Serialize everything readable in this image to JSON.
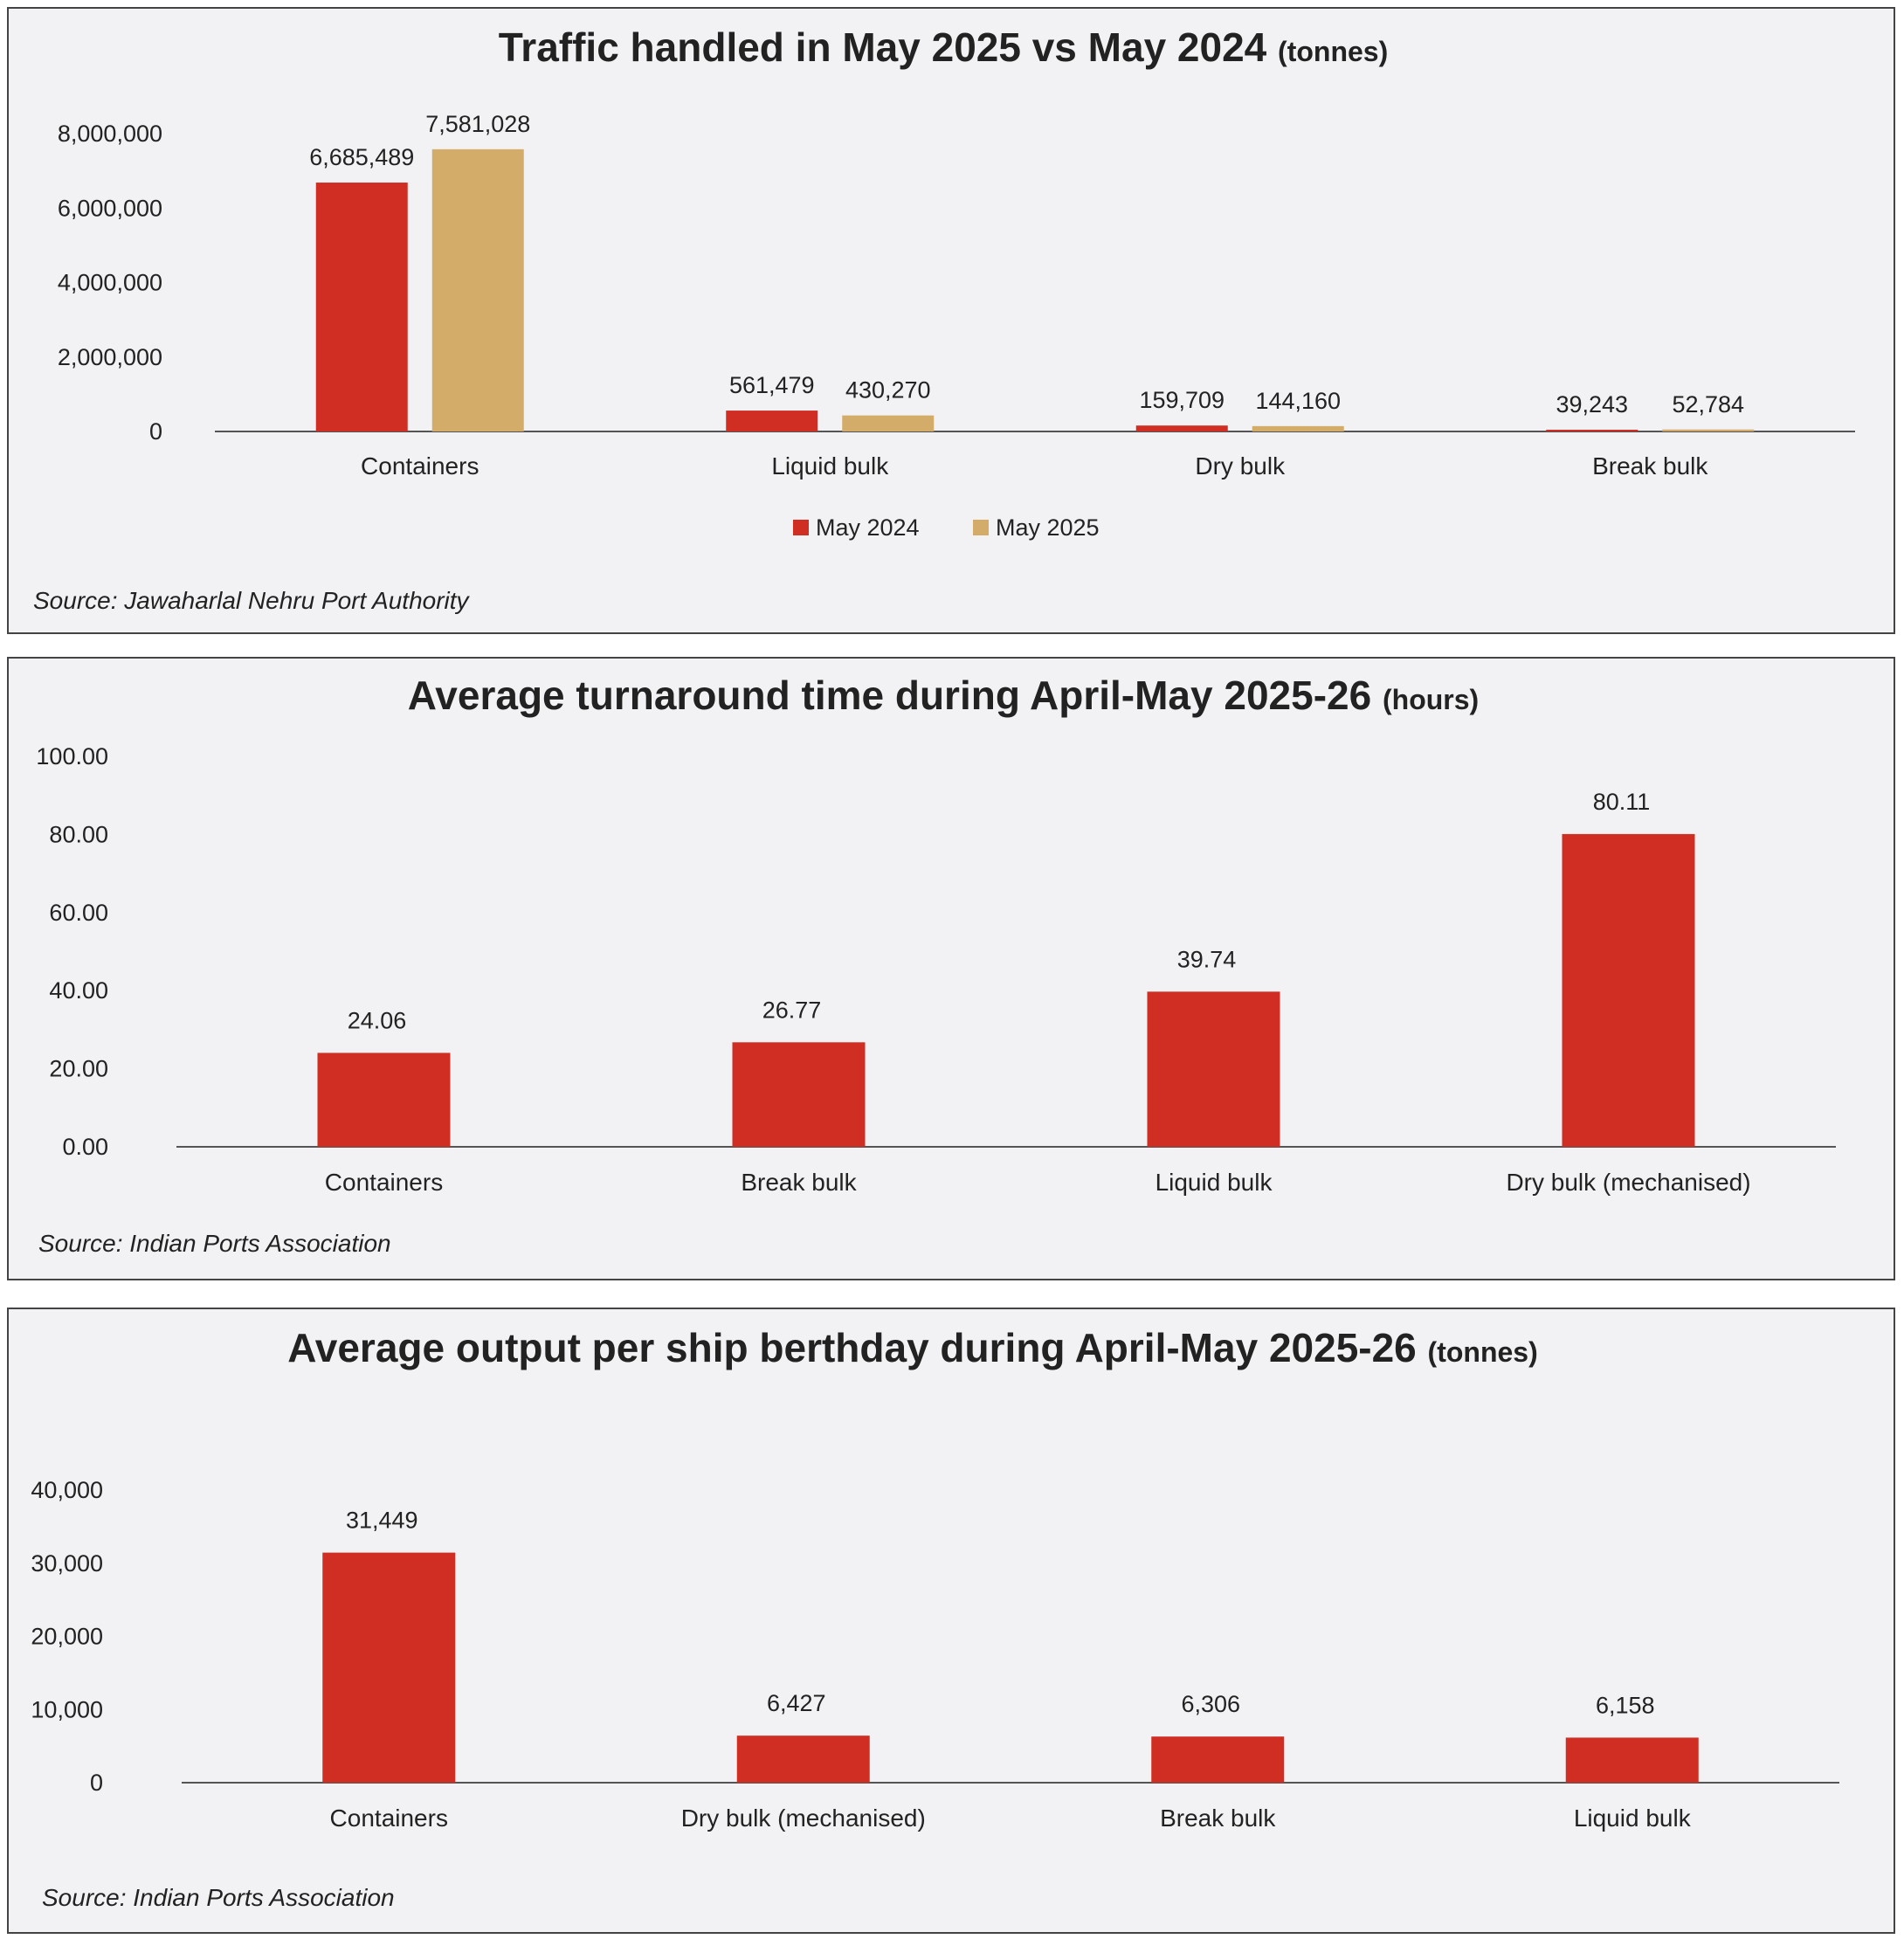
{
  "colors": {
    "may2024": "#d12e23",
    "may2025": "#d4ac69",
    "axis": "#555555",
    "text": "#222222"
  },
  "chart_data": [
    {
      "type": "bar",
      "title": "Traffic handled in May 2025 vs May 2024",
      "title_unit": "(tonnes)",
      "categories": [
        "Containers",
        "Liquid bulk",
        "Dry bulk",
        "Break bulk"
      ],
      "series": [
        {
          "name": "May 2024",
          "values": [
            6685489,
            561479,
            159709,
            39243
          ],
          "labels": [
            "6,685,489",
            "561,479",
            "159,709",
            "39,243"
          ]
        },
        {
          "name": "May 2025",
          "values": [
            7581028,
            430270,
            144160,
            52784
          ],
          "labels": [
            "7,581,028",
            "430,270",
            "144,160",
            "52,784"
          ]
        }
      ],
      "yticks": [
        "0",
        "2,000,000",
        "4,000,000",
        "6,000,000",
        "8,000,000"
      ],
      "ylim": [
        0,
        8000000
      ],
      "legend": "bottom-center",
      "grid": false,
      "source": "Source: Jawaharlal Nehru Port Authority"
    },
    {
      "type": "bar",
      "title": "Average turnaround time during April-May 2025-26",
      "title_unit": "(hours)",
      "categories": [
        "Containers",
        "Break bulk",
        "Liquid bulk",
        "Dry bulk (mechanised)"
      ],
      "values": [
        24.06,
        26.77,
        39.74,
        80.11
      ],
      "labels": [
        "24.06",
        "26.77",
        "39.74",
        "80.11"
      ],
      "yticks": [
        "0.00",
        "20.00",
        "40.00",
        "60.00",
        "80.00",
        "100.00"
      ],
      "ylim": [
        0,
        100
      ],
      "grid": false,
      "source": "Source: Indian Ports Association"
    },
    {
      "type": "bar",
      "title": "Average output per ship berthday during April-May 2025-26",
      "title_unit": "(tonnes)",
      "categories": [
        "Containers",
        "Dry bulk (mechanised)",
        "Break bulk",
        "Liquid bulk"
      ],
      "values": [
        31449,
        6427,
        6306,
        6158
      ],
      "labels": [
        "31,449",
        "6,427",
        "6,306",
        "6,158"
      ],
      "yticks": [
        "0",
        "10,000",
        "20,000",
        "30,000",
        "40,000"
      ],
      "ylim": [
        0,
        40000
      ],
      "grid": false,
      "source": "Source: Indian Ports Association"
    }
  ]
}
